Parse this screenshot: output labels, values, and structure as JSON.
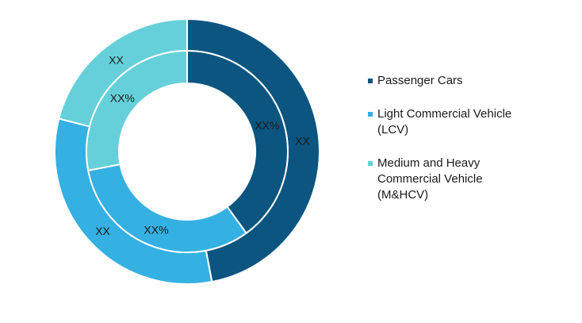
{
  "chart_data": {
    "type": "pie",
    "variant": "nested-donut",
    "categories": [
      "Passenger Cars",
      "Light Commercial Vehicle\n(LCV)",
      "Medium and Heavy\nCommercial Vehicle\n(M&HCV)"
    ],
    "colors": [
      "#0b5580",
      "#35b0e2",
      "#66d0da"
    ],
    "series": [
      {
        "ring": "outer",
        "values": [
          47,
          32,
          21
        ],
        "labels": [
          "XX",
          "XX",
          "XX"
        ]
      },
      {
        "ring": "inner",
        "values": [
          40,
          32,
          28
        ],
        "labels": [
          "XX%",
          "XX%",
          "XX%"
        ]
      }
    ],
    "legend_position": "right"
  }
}
